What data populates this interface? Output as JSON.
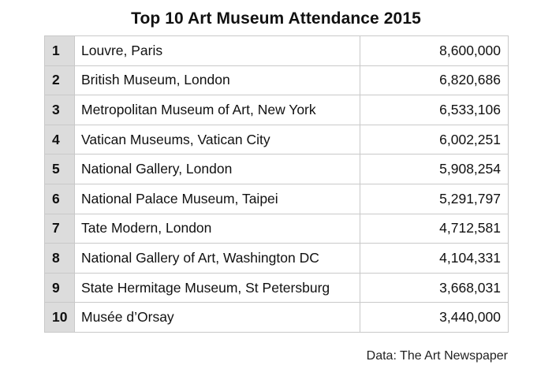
{
  "chart_data": {
    "type": "table",
    "title": "Top 10 Art Museum Attendance 2015",
    "rows": [
      {
        "rank": "1",
        "museum": "Louvre, Paris",
        "attendance": "8,600,000"
      },
      {
        "rank": "2",
        "museum": "British Museum, London",
        "attendance": "6,820,686"
      },
      {
        "rank": "3",
        "museum": "Metropolitan Museum of Art, New York",
        "attendance": "6,533,106"
      },
      {
        "rank": "4",
        "museum": "Vatican Museums, Vatican City",
        "attendance": "6,002,251"
      },
      {
        "rank": "5",
        "museum": "National Gallery, London",
        "attendance": "5,908,254"
      },
      {
        "rank": "6",
        "museum": "National Palace Museum, Taipei",
        "attendance": "5,291,797"
      },
      {
        "rank": "7",
        "museum": "Tate Modern, London",
        "attendance": "4,712,581"
      },
      {
        "rank": "8",
        "museum": "National Gallery of Art, Washington DC",
        "attendance": "4,104,331"
      },
      {
        "rank": "9",
        "museum": "State Hermitage Museum, St Petersburg",
        "attendance": "3,668,031"
      },
      {
        "rank": "10",
        "museum": "Musée d’Orsay",
        "attendance": "3,440,000"
      }
    ],
    "source": "Data: The Art Newspaper"
  }
}
